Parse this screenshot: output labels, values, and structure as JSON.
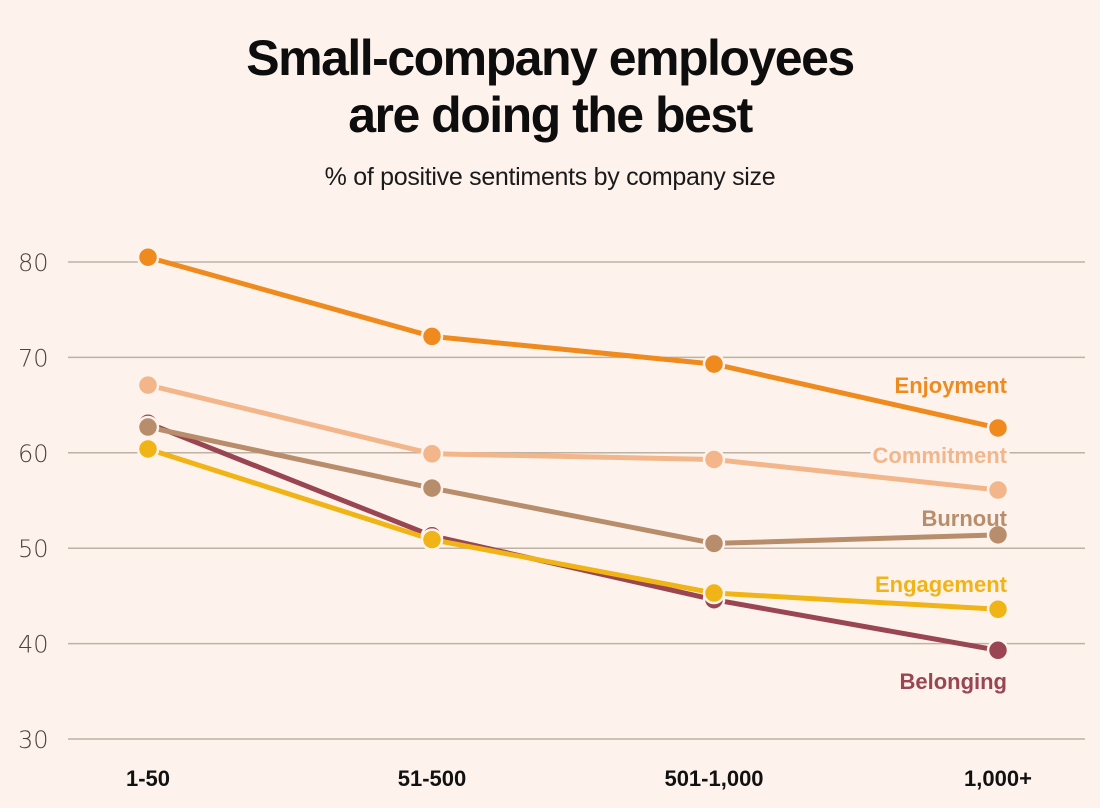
{
  "chart_data": {
    "type": "line",
    "title": "Small-company employees are doing the best",
    "title_lines": [
      "Small-company employees",
      "are doing the best"
    ],
    "subtitle": "% of positive sentiments by company size",
    "xlabel": "",
    "ylabel": "",
    "categories": [
      "1-50",
      "51-500",
      "501-1,000",
      "1,000+"
    ],
    "ylim": [
      30,
      80
    ],
    "yticks": [
      30,
      40,
      50,
      60,
      70,
      80
    ],
    "grid": true,
    "legend": "inline-right",
    "series": [
      {
        "name": "Enjoyment",
        "color": "#ef8a1f",
        "values": [
          80.5,
          72.2,
          69.3,
          62.6
        ]
      },
      {
        "name": "Commitment",
        "color": "#f2b68a",
        "values": [
          67.1,
          59.9,
          59.3,
          56.1
        ]
      },
      {
        "name": "Burnout",
        "color": "#b88d6c",
        "values": [
          62.7,
          56.3,
          50.5,
          51.4
        ]
      },
      {
        "name": "Engagement",
        "color": "#f0b416",
        "values": [
          60.4,
          50.9,
          45.3,
          43.6
        ]
      },
      {
        "name": "Belonging",
        "color": "#9a4552",
        "values": [
          63.1,
          51.3,
          44.6,
          39.3
        ]
      }
    ]
  }
}
